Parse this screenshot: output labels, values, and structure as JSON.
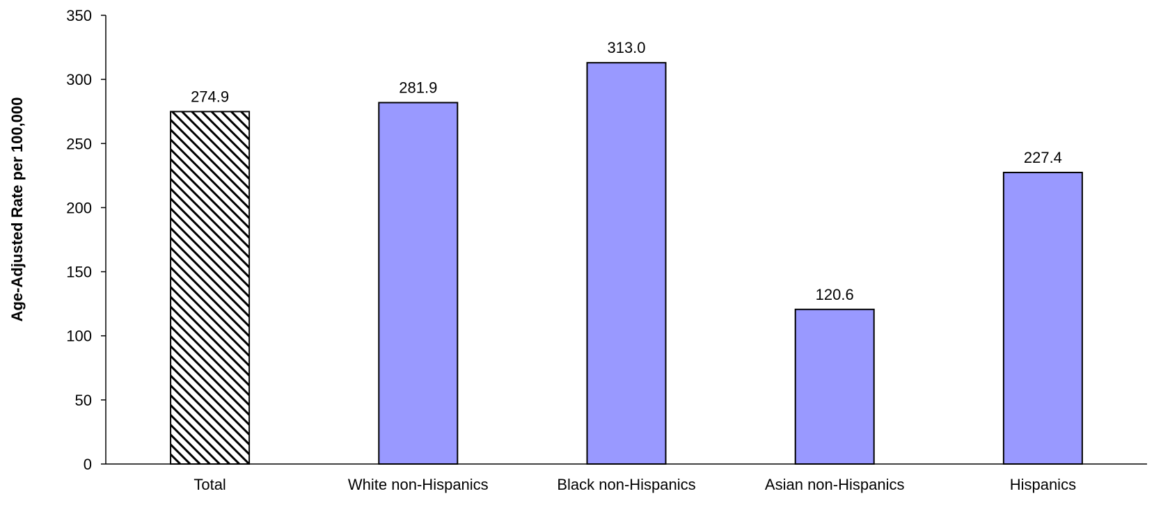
{
  "chart_data": {
    "type": "bar",
    "title": "",
    "xlabel": "",
    "ylabel": "Age-Adjusted Rate per 100,000",
    "categories": [
      "Total",
      "White non-Hispanics",
      "Black non-Hispanics",
      "Asian non-Hispanics",
      "Hispanics"
    ],
    "values": [
      274.9,
      281.9,
      313.0,
      120.6,
      227.4
    ],
    "data_labels": [
      "274.9",
      "281.9",
      "313.0",
      "120.6",
      "227.4"
    ],
    "ylim": [
      0,
      350
    ],
    "yticks": [
      0,
      50,
      100,
      150,
      200,
      250,
      300,
      350
    ],
    "grid": false,
    "legend": "none",
    "bar_styles": [
      "hatched",
      "solid",
      "solid",
      "solid",
      "solid"
    ],
    "colors": {
      "bar_fill": "#9999FF",
      "bar_stroke": "#000000",
      "hatch": "#000000",
      "axis": "#000000"
    }
  }
}
